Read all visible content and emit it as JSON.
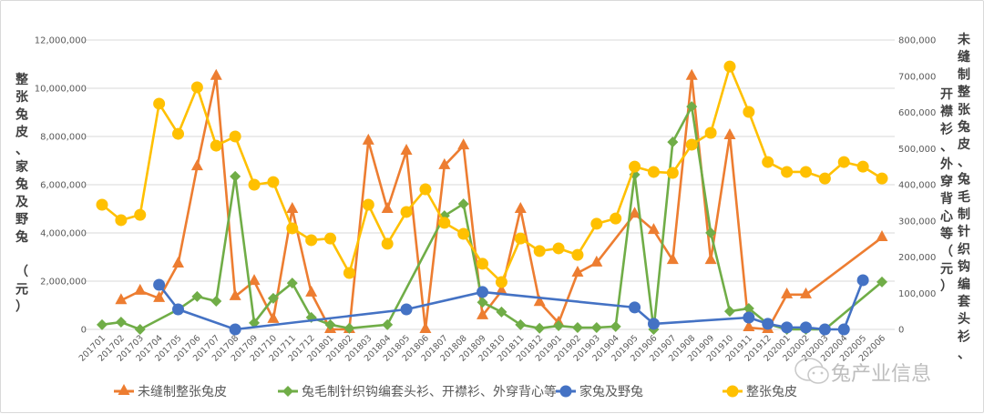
{
  "chart_data": {
    "type": "line",
    "title": "",
    "categories": [
      "201701",
      "201702",
      "201703",
      "201704",
      "201705",
      "201706",
      "201707",
      "201708",
      "201709",
      "201710",
      "201711",
      "201712",
      "201801",
      "201802",
      "201803",
      "201804",
      "201805",
      "201806",
      "201807",
      "201808",
      "201809",
      "201810",
      "201811",
      "201812",
      "201901",
      "201902",
      "201903",
      "201904",
      "201905",
      "201906",
      "201907",
      "201908",
      "201909",
      "201910",
      "201911",
      "201912",
      "202001",
      "202002",
      "202003",
      "202004",
      "202005",
      "202006"
    ],
    "left_axis": {
      "label": "整张兔皮、家兔及野兔（元）",
      "ylim": [
        0,
        12000000
      ],
      "ticks": [
        "0",
        "2,000,000",
        "4,000,000",
        "6,000,000",
        "8,000,000",
        "10,000,000",
        "12,000,000"
      ],
      "tick_values": [
        0,
        2000000,
        4000000,
        6000000,
        8000000,
        10000000,
        12000000
      ]
    },
    "right_axis": {
      "label_line1": "未缝制整张兔皮、兔毛制针织钩编套头衫、",
      "label_line2": "开襟衫、外穿背心等（元）",
      "ylim": [
        0,
        800000
      ],
      "ticks": [
        "0",
        "100,000",
        "200,000",
        "300,000",
        "400,000",
        "500,000",
        "600,000",
        "700,000",
        "800,000"
      ],
      "tick_values": [
        0,
        100000,
        200000,
        300000,
        400000,
        500000,
        600000,
        700000,
        800000
      ]
    },
    "grid": true,
    "legend_position": "bottom",
    "series": [
      {
        "name": "未缝制整张兔皮",
        "axis": "right",
        "color": "#ED7D31",
        "marker": "triangle",
        "values": [
          null,
          80000,
          106000,
          86000,
          181000,
          450000,
          700000,
          91000,
          133000,
          28000,
          332000,
          101000,
          0,
          0,
          521000,
          332000,
          493000,
          0,
          453000,
          508000,
          38000,
          106000,
          332000,
          75000,
          18000,
          156000,
          184000,
          null,
          319000,
          274000,
          191000,
          700000,
          191000,
          536000,
          5000,
          0,
          96000,
          96000,
          null,
          null,
          null,
          254000
        ]
      },
      {
        "name": "兔毛制针织钩编套头衫、开襟衫、外穿背心等",
        "axis": "right",
        "color": "#70AD47",
        "marker": "diamond",
        "values": [
          13000,
          20000,
          0,
          null,
          55000,
          91000,
          78000,
          423000,
          18000,
          86000,
          128000,
          33000,
          13000,
          3000,
          null,
          13000,
          null,
          null,
          314000,
          347000,
          75000,
          48000,
          13000,
          3000,
          10000,
          5000,
          5000,
          8000,
          428000,
          0,
          518000,
          616000,
          267000,
          50000,
          58000,
          15000,
          0,
          0,
          0,
          null,
          null,
          131000
        ]
      },
      {
        "name": "家兔及野兔",
        "axis": "left",
        "color": "#4472C4",
        "marker": "circle",
        "values": [
          null,
          null,
          null,
          1850000,
          830000,
          null,
          null,
          0,
          null,
          null,
          null,
          null,
          null,
          null,
          null,
          null,
          830000,
          null,
          null,
          null,
          1550000,
          null,
          null,
          null,
          null,
          null,
          null,
          null,
          910000,
          230000,
          null,
          null,
          null,
          null,
          490000,
          230000,
          80000,
          80000,
          0,
          0,
          2040000,
          null
        ]
      },
      {
        "name": "整张兔皮",
        "axis": "left",
        "color": "#FFC000",
        "marker": "circle",
        "values": [
          5170000,
          4530000,
          4750000,
          9360000,
          8110000,
          10040000,
          7620000,
          8000000,
          6000000,
          6110000,
          4190000,
          3700000,
          3770000,
          2340000,
          5170000,
          3550000,
          4870000,
          5810000,
          4420000,
          3960000,
          2720000,
          1960000,
          3770000,
          3250000,
          3360000,
          3090000,
          4380000,
          4600000,
          6750000,
          6530000,
          6490000,
          7660000,
          8150000,
          10900000,
          9020000,
          6940000,
          6530000,
          6530000,
          6260000,
          6940000,
          6750000,
          6260000
        ]
      }
    ]
  },
  "legend": [
    {
      "label": "未缝制整张兔皮",
      "color": "#ED7D31",
      "marker": "triangle"
    },
    {
      "label": "兔毛制针织钩编套头衫、开襟衫、外穿背心等",
      "color": "#70AD47",
      "marker": "diamond"
    },
    {
      "label": "家兔及野兔",
      "color": "#4472C4",
      "marker": "circle"
    },
    {
      "label": "整张兔皮",
      "color": "#FFC000",
      "marker": "circle"
    }
  ],
  "watermark": {
    "text": "兔产业信息",
    "icon": "wechat-icon"
  }
}
